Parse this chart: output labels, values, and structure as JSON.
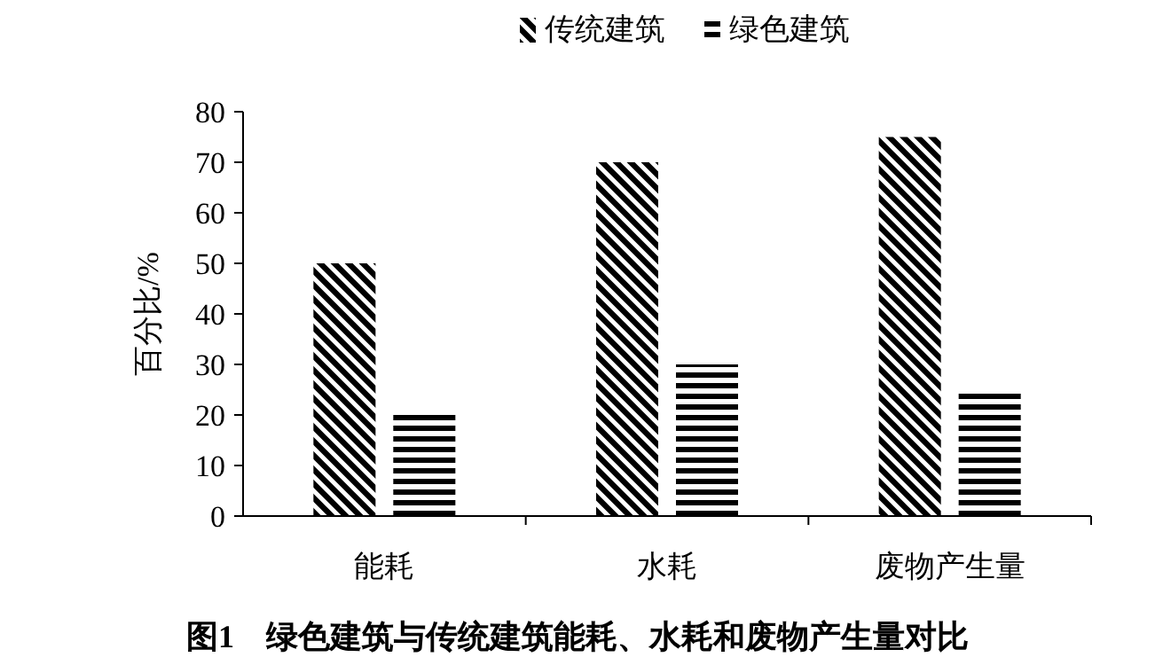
{
  "chart_data": {
    "type": "bar",
    "title": "图1　绿色建筑与传统建筑能耗、水耗和废物产生量对比",
    "ylabel": "百分比/%",
    "categories": [
      "能耗",
      "水耗",
      "废物产生量"
    ],
    "series": [
      {
        "name": "传统建筑",
        "color": "#000000",
        "values": [
          50,
          70,
          75
        ]
      },
      {
        "name": "绿色建筑",
        "color": "#000000",
        "values": [
          20,
          30,
          25
        ]
      }
    ],
    "ylim": [
      0,
      80
    ],
    "yticks": [
      0,
      10,
      20,
      30,
      40,
      50,
      60,
      70,
      80
    ],
    "legend": "top"
  }
}
